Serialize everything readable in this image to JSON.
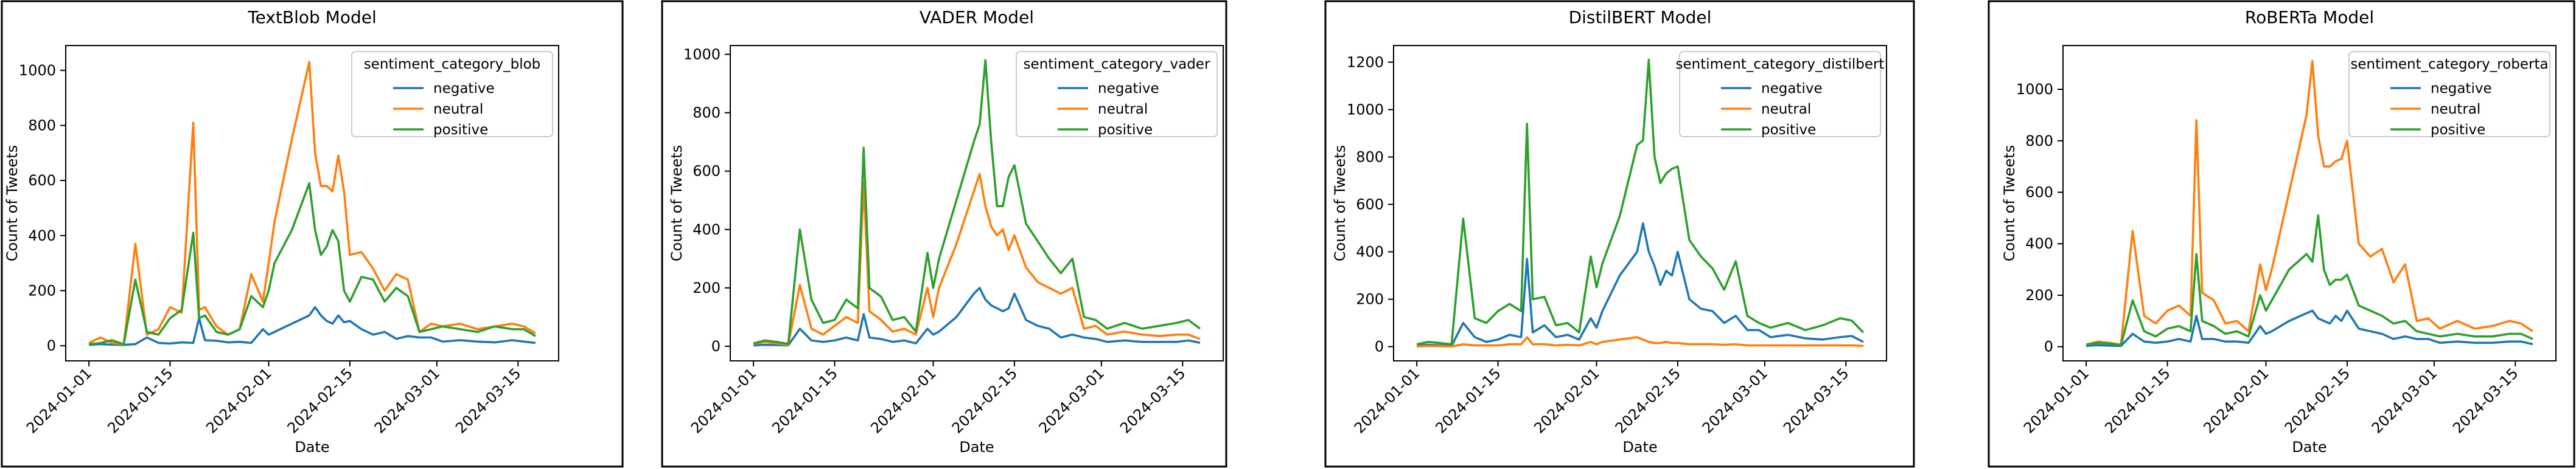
{
  "chart_data": [
    {
      "type": "line",
      "title": "TextBlob Model",
      "xlabel": "Date",
      "ylabel": "Count of Tweets",
      "x": [
        "2024-01-01",
        "2024-01-03",
        "2024-01-05",
        "2024-01-07",
        "2024-01-09",
        "2024-01-11",
        "2024-01-13",
        "2024-01-15",
        "2024-01-17",
        "2024-01-19",
        "2024-01-20",
        "2024-01-21",
        "2024-01-23",
        "2024-01-25",
        "2024-01-27",
        "2024-01-29",
        "2024-01-31",
        "2024-02-01",
        "2024-02-02",
        "2024-02-05",
        "2024-02-08",
        "2024-02-09",
        "2024-02-10",
        "2024-02-11",
        "2024-02-12",
        "2024-02-13",
        "2024-02-14",
        "2024-02-15",
        "2024-02-17",
        "2024-02-19",
        "2024-02-21",
        "2024-02-23",
        "2024-02-25",
        "2024-02-27",
        "2024-02-29",
        "2024-03-02",
        "2024-03-05",
        "2024-03-08",
        "2024-03-11",
        "2024-03-14",
        "2024-03-16",
        "2024-03-18"
      ],
      "series": [
        {
          "name": "negative",
          "values": [
            3,
            6,
            4,
            3,
            6,
            30,
            10,
            8,
            12,
            10,
            100,
            20,
            18,
            12,
            14,
            10,
            60,
            40,
            50,
            80,
            110,
            140,
            110,
            90,
            80,
            110,
            85,
            90,
            60,
            40,
            50,
            25,
            35,
            30,
            30,
            15,
            20,
            15,
            12,
            20,
            15,
            10
          ]
        },
        {
          "name": "neutral",
          "values": [
            10,
            30,
            10,
            5,
            370,
            40,
            60,
            140,
            120,
            810,
            130,
            140,
            70,
            40,
            60,
            260,
            160,
            300,
            450,
            750,
            1030,
            700,
            580,
            580,
            560,
            690,
            560,
            330,
            340,
            280,
            200,
            260,
            240,
            50,
            80,
            70,
            80,
            60,
            70,
            80,
            70,
            45
          ]
        },
        {
          "name": "positive",
          "values": [
            5,
            10,
            20,
            5,
            240,
            50,
            40,
            100,
            130,
            410,
            100,
            110,
            50,
            40,
            60,
            180,
            140,
            200,
            300,
            420,
            590,
            420,
            330,
            360,
            420,
            380,
            200,
            160,
            250,
            240,
            160,
            210,
            180,
            50,
            60,
            70,
            60,
            50,
            70,
            60,
            60,
            35
          ]
        }
      ],
      "xticks": [
        "2024-01-01",
        "2024-01-15",
        "2024-02-01",
        "2024-02-15",
        "2024-03-01",
        "2024-03-15"
      ],
      "yticks": [
        0,
        200,
        400,
        600,
        800,
        1000
      ],
      "ylim": [
        -55,
        1090
      ],
      "legend": {
        "title": "sentiment_category_blob",
        "position": "top-right"
      }
    },
    {
      "type": "line",
      "title": "VADER Model",
      "xlabel": "Date",
      "ylabel": "Count of Tweets",
      "x": [
        "2024-01-01",
        "2024-01-03",
        "2024-01-05",
        "2024-01-07",
        "2024-01-09",
        "2024-01-11",
        "2024-01-13",
        "2024-01-15",
        "2024-01-17",
        "2024-01-19",
        "2024-01-20",
        "2024-01-21",
        "2024-01-23",
        "2024-01-25",
        "2024-01-27",
        "2024-01-29",
        "2024-01-31",
        "2024-02-01",
        "2024-02-02",
        "2024-02-05",
        "2024-02-08",
        "2024-02-09",
        "2024-02-10",
        "2024-02-11",
        "2024-02-12",
        "2024-02-13",
        "2024-02-14",
        "2024-02-15",
        "2024-02-17",
        "2024-02-19",
        "2024-02-21",
        "2024-02-23",
        "2024-02-25",
        "2024-02-27",
        "2024-02-29",
        "2024-03-02",
        "2024-03-05",
        "2024-03-08",
        "2024-03-11",
        "2024-03-14",
        "2024-03-16",
        "2024-03-18"
      ],
      "series": [
        {
          "name": "negative",
          "values": [
            3,
            5,
            4,
            3,
            60,
            20,
            15,
            20,
            30,
            20,
            110,
            30,
            25,
            15,
            20,
            10,
            60,
            40,
            50,
            100,
            180,
            200,
            160,
            140,
            130,
            120,
            130,
            180,
            90,
            70,
            60,
            30,
            40,
            30,
            25,
            15,
            20,
            15,
            15,
            15,
            20,
            12
          ]
        },
        {
          "name": "neutral",
          "values": [
            8,
            15,
            10,
            5,
            210,
            60,
            40,
            70,
            100,
            80,
            560,
            120,
            90,
            50,
            60,
            40,
            200,
            100,
            200,
            350,
            530,
            590,
            480,
            410,
            380,
            400,
            330,
            380,
            270,
            220,
            200,
            180,
            200,
            60,
            70,
            40,
            50,
            40,
            35,
            40,
            40,
            25
          ]
        },
        {
          "name": "positive",
          "values": [
            10,
            20,
            15,
            8,
            400,
            160,
            80,
            90,
            160,
            130,
            680,
            200,
            170,
            90,
            100,
            50,
            320,
            200,
            300,
            500,
            700,
            760,
            980,
            700,
            480,
            480,
            580,
            620,
            420,
            360,
            300,
            250,
            300,
            100,
            90,
            60,
            80,
            60,
            70,
            80,
            90,
            60
          ]
        }
      ],
      "xticks": [
        "2024-01-01",
        "2024-01-15",
        "2024-02-01",
        "2024-02-15",
        "2024-03-01",
        "2024-03-15"
      ],
      "yticks": [
        0,
        200,
        400,
        600,
        800,
        1000
      ],
      "ylim": [
        -50,
        1030
      ],
      "legend": {
        "title": "sentiment_category_vader",
        "position": "top-right"
      }
    },
    {
      "type": "line",
      "title": "DistilBERT Model",
      "xlabel": "Date",
      "ylabel": "Count of Tweets",
      "x": [
        "2024-01-01",
        "2024-01-03",
        "2024-01-05",
        "2024-01-07",
        "2024-01-09",
        "2024-01-11",
        "2024-01-13",
        "2024-01-15",
        "2024-01-17",
        "2024-01-19",
        "2024-01-20",
        "2024-01-21",
        "2024-01-23",
        "2024-01-25",
        "2024-01-27",
        "2024-01-29",
        "2024-01-31",
        "2024-02-01",
        "2024-02-02",
        "2024-02-05",
        "2024-02-08",
        "2024-02-09",
        "2024-02-10",
        "2024-02-11",
        "2024-02-12",
        "2024-02-13",
        "2024-02-14",
        "2024-02-15",
        "2024-02-17",
        "2024-02-19",
        "2024-02-21",
        "2024-02-23",
        "2024-02-25",
        "2024-02-27",
        "2024-02-29",
        "2024-03-02",
        "2024-03-05",
        "2024-03-08",
        "2024-03-11",
        "2024-03-14",
        "2024-03-16",
        "2024-03-18"
      ],
      "series": [
        {
          "name": "negative",
          "values": [
            3,
            8,
            5,
            3,
            100,
            40,
            20,
            30,
            50,
            40,
            370,
            60,
            90,
            40,
            50,
            30,
            120,
            80,
            150,
            300,
            400,
            520,
            400,
            340,
            260,
            320,
            300,
            400,
            200,
            160,
            150,
            100,
            130,
            70,
            70,
            40,
            50,
            35,
            30,
            40,
            45,
            20
          ]
        },
        {
          "name": "neutral",
          "values": [
            1,
            3,
            2,
            1,
            10,
            5,
            5,
            5,
            10,
            10,
            40,
            10,
            10,
            5,
            8,
            5,
            20,
            10,
            20,
            30,
            40,
            30,
            20,
            15,
            15,
            20,
            15,
            15,
            10,
            10,
            10,
            8,
            10,
            5,
            5,
            5,
            5,
            5,
            5,
            5,
            5,
            3
          ]
        },
        {
          "name": "positive",
          "values": [
            10,
            20,
            15,
            10,
            540,
            120,
            100,
            150,
            180,
            150,
            940,
            200,
            210,
            90,
            100,
            60,
            380,
            250,
            350,
            550,
            850,
            870,
            1210,
            800,
            690,
            730,
            750,
            760,
            450,
            380,
            330,
            240,
            360,
            130,
            100,
            80,
            100,
            70,
            90,
            120,
            110,
            60
          ]
        }
      ],
      "xticks": [
        "2024-01-01",
        "2024-01-15",
        "2024-02-01",
        "2024-02-15",
        "2024-03-01",
        "2024-03-15"
      ],
      "yticks": [
        0,
        200,
        400,
        600,
        800,
        1000,
        1200
      ],
      "ylim": [
        -60,
        1270
      ],
      "legend": {
        "title": "sentiment_category_distilbert",
        "position": "top-right"
      }
    },
    {
      "type": "line",
      "title": "RoBERTa Model",
      "xlabel": "Date",
      "ylabel": "Count of Tweets",
      "x": [
        "2024-01-01",
        "2024-01-03",
        "2024-01-05",
        "2024-01-07",
        "2024-01-09",
        "2024-01-11",
        "2024-01-13",
        "2024-01-15",
        "2024-01-17",
        "2024-01-19",
        "2024-01-20",
        "2024-01-21",
        "2024-01-23",
        "2024-01-25",
        "2024-01-27",
        "2024-01-29",
        "2024-01-31",
        "2024-02-01",
        "2024-02-02",
        "2024-02-05",
        "2024-02-08",
        "2024-02-09",
        "2024-02-10",
        "2024-02-11",
        "2024-02-12",
        "2024-02-13",
        "2024-02-14",
        "2024-02-15",
        "2024-02-17",
        "2024-02-19",
        "2024-02-21",
        "2024-02-23",
        "2024-02-25",
        "2024-02-27",
        "2024-02-29",
        "2024-03-02",
        "2024-03-05",
        "2024-03-08",
        "2024-03-11",
        "2024-03-14",
        "2024-03-16",
        "2024-03-18"
      ],
      "series": [
        {
          "name": "negative",
          "values": [
            3,
            6,
            4,
            3,
            50,
            20,
            15,
            20,
            30,
            20,
            120,
            30,
            30,
            20,
            20,
            15,
            80,
            50,
            60,
            100,
            130,
            140,
            110,
            100,
            90,
            120,
            100,
            140,
            70,
            60,
            50,
            30,
            40,
            30,
            30,
            15,
            20,
            15,
            15,
            20,
            20,
            10
          ]
        },
        {
          "name": "neutral",
          "values": [
            8,
            20,
            15,
            8,
            450,
            120,
            90,
            140,
            160,
            120,
            880,
            210,
            180,
            90,
            100,
            60,
            320,
            220,
            300,
            600,
            900,
            1110,
            820,
            700,
            700,
            720,
            730,
            800,
            400,
            350,
            380,
            250,
            320,
            100,
            110,
            70,
            100,
            70,
            80,
            100,
            90,
            60
          ]
        },
        {
          "name": "positive",
          "values": [
            8,
            15,
            12,
            6,
            180,
            60,
            40,
            70,
            80,
            60,
            360,
            100,
            80,
            50,
            60,
            40,
            200,
            140,
            180,
            300,
            360,
            330,
            510,
            300,
            240,
            260,
            260,
            280,
            160,
            140,
            120,
            90,
            100,
            60,
            50,
            40,
            50,
            40,
            40,
            50,
            50,
            30
          ]
        }
      ],
      "xticks": [
        "2024-01-01",
        "2024-01-15",
        "2024-02-01",
        "2024-02-15",
        "2024-03-01",
        "2024-03-15"
      ],
      "yticks": [
        0,
        200,
        400,
        600,
        800,
        1000
      ],
      "ylim": [
        -55,
        1170
      ],
      "legend": {
        "title": "sentiment_category_roberta",
        "position": "top-right"
      }
    }
  ],
  "colors": {
    "negative": "#1f77b4",
    "neutral": "#ff7f0e",
    "positive": "#2ca02c"
  }
}
